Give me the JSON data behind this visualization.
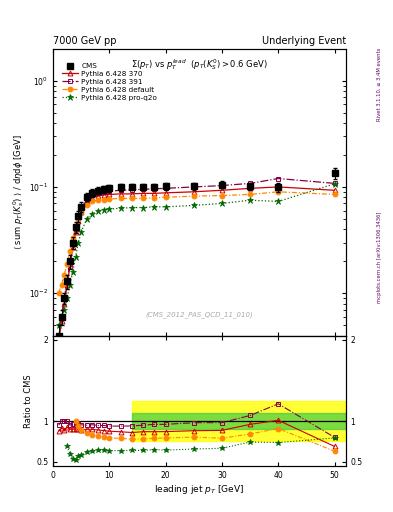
{
  "title_left": "7000 GeV pp",
  "title_right": "Underlying Event",
  "plot_title": "$\\Sigma(p_T)$ vs $p_T^{lead}$  $(p_T(K_S^0) > 0.6$ GeV$)$",
  "ylabel_main": "$\\langle$ sum $p_T(K_s^0)$ $\\rangle$ / d$\\eta$d$\\phi$ [GeV]",
  "ylabel_ratio": "Ratio to CMS",
  "xlabel": "leading jet $p_T$ [GeV]",
  "watermark": "(CMS_2012_PAS_QCD_11_010)",
  "right_label1": "mcplots.cern.ch [arXiv:1306.3436]",
  "right_label2": "Rivet 3.1.10, ≥ 3.4M events",
  "cms_x": [
    1.0,
    1.5,
    2.0,
    2.5,
    3.0,
    3.5,
    4.0,
    4.5,
    5.0,
    6.0,
    7.0,
    8.0,
    9.0,
    10.0,
    12.0,
    14.0,
    16.0,
    18.0,
    20.0,
    25.0,
    30.0,
    35.0,
    40.0,
    50.0
  ],
  "cms_y": [
    0.004,
    0.006,
    0.009,
    0.013,
    0.02,
    0.03,
    0.042,
    0.053,
    0.065,
    0.08,
    0.088,
    0.092,
    0.095,
    0.097,
    0.099,
    0.1,
    0.1,
    0.1,
    0.101,
    0.102,
    0.105,
    0.101,
    0.099,
    0.135
  ],
  "cms_yerr": [
    0.001,
    0.001,
    0.001,
    0.002,
    0.003,
    0.004,
    0.005,
    0.006,
    0.007,
    0.007,
    0.007,
    0.007,
    0.007,
    0.007,
    0.007,
    0.007,
    0.007,
    0.007,
    0.007,
    0.008,
    0.008,
    0.008,
    0.009,
    0.015
  ],
  "p370_x": [
    1.0,
    1.5,
    2.0,
    2.5,
    3.0,
    3.5,
    4.0,
    4.5,
    5.0,
    6.0,
    7.0,
    8.0,
    9.0,
    10.0,
    12.0,
    14.0,
    16.0,
    18.0,
    20.0,
    25.0,
    30.0,
    35.0,
    40.0,
    50.0
  ],
  "p370_y": [
    0.0035,
    0.0055,
    0.008,
    0.012,
    0.018,
    0.027,
    0.038,
    0.048,
    0.058,
    0.072,
    0.079,
    0.082,
    0.084,
    0.085,
    0.086,
    0.086,
    0.087,
    0.087,
    0.088,
    0.09,
    0.093,
    0.097,
    0.1,
    0.093
  ],
  "p391_x": [
    1.0,
    1.5,
    2.0,
    2.5,
    3.0,
    3.5,
    4.0,
    4.5,
    5.0,
    6.0,
    7.0,
    8.0,
    9.0,
    10.0,
    12.0,
    14.0,
    16.0,
    18.0,
    20.0,
    25.0,
    30.0,
    35.0,
    40.0,
    50.0
  ],
  "p391_y": [
    0.0038,
    0.006,
    0.009,
    0.013,
    0.019,
    0.029,
    0.04,
    0.051,
    0.062,
    0.076,
    0.084,
    0.087,
    0.09,
    0.091,
    0.093,
    0.094,
    0.095,
    0.096,
    0.097,
    0.1,
    0.103,
    0.108,
    0.12,
    0.108
  ],
  "pdef_x": [
    1.0,
    1.5,
    2.0,
    2.5,
    3.0,
    3.5,
    4.0,
    4.5,
    5.0,
    6.0,
    7.0,
    8.0,
    9.0,
    10.0,
    12.0,
    14.0,
    16.0,
    18.0,
    20.0,
    25.0,
    30.0,
    35.0,
    40.0,
    50.0
  ],
  "pdef_y": [
    0.01,
    0.012,
    0.015,
    0.019,
    0.025,
    0.033,
    0.042,
    0.05,
    0.058,
    0.068,
    0.073,
    0.075,
    0.076,
    0.077,
    0.078,
    0.078,
    0.078,
    0.079,
    0.08,
    0.082,
    0.083,
    0.085,
    0.09,
    0.085
  ],
  "pq2o_x": [
    1.0,
    1.5,
    2.0,
    2.5,
    3.0,
    3.5,
    4.0,
    4.5,
    5.0,
    6.0,
    7.0,
    8.0,
    9.0,
    10.0,
    12.0,
    14.0,
    16.0,
    18.0,
    20.0,
    25.0,
    30.0,
    35.0,
    40.0,
    50.0
  ],
  "pq2o_y": [
    0.005,
    0.006,
    0.007,
    0.009,
    0.012,
    0.016,
    0.022,
    0.03,
    0.038,
    0.05,
    0.056,
    0.059,
    0.061,
    0.062,
    0.063,
    0.064,
    0.064,
    0.065,
    0.065,
    0.067,
    0.07,
    0.075,
    0.073,
    0.107
  ],
  "ratio_370_x": [
    1.0,
    1.5,
    2.0,
    2.5,
    3.0,
    3.5,
    4.0,
    4.5,
    5.0,
    6.0,
    7.0,
    8.0,
    9.0,
    10.0,
    12.0,
    14.0,
    16.0,
    18.0,
    20.0,
    25.0,
    30.0,
    35.0,
    40.0,
    50.0
  ],
  "ratio_370_y": [
    0.875,
    0.917,
    0.889,
    0.923,
    0.9,
    0.9,
    0.905,
    0.906,
    0.892,
    0.9,
    0.898,
    0.891,
    0.884,
    0.876,
    0.869,
    0.86,
    0.87,
    0.87,
    0.871,
    0.882,
    0.886,
    0.96,
    1.01,
    0.689
  ],
  "ratio_391_x": [
    1.0,
    1.5,
    2.0,
    2.5,
    3.0,
    3.5,
    4.0,
    4.5,
    5.0,
    6.0,
    7.0,
    8.0,
    9.0,
    10.0,
    12.0,
    14.0,
    16.0,
    18.0,
    20.0,
    25.0,
    30.0,
    35.0,
    40.0,
    50.0
  ],
  "ratio_391_y": [
    0.95,
    1.0,
    1.0,
    1.0,
    0.95,
    0.967,
    0.952,
    0.962,
    0.954,
    0.95,
    0.955,
    0.946,
    0.947,
    0.938,
    0.939,
    0.94,
    0.95,
    0.96,
    0.96,
    0.98,
    0.981,
    1.069,
    1.212,
    0.8
  ],
  "ratio_def_x": [
    4.0,
    4.5,
    5.0,
    6.0,
    7.0,
    8.0,
    9.0,
    10.0,
    12.0,
    14.0,
    16.0,
    18.0,
    20.0,
    25.0,
    30.0,
    35.0,
    40.0,
    50.0
  ],
  "ratio_def_y": [
    1.0,
    0.943,
    0.892,
    0.85,
    0.83,
    0.815,
    0.8,
    0.794,
    0.788,
    0.78,
    0.78,
    0.79,
    0.792,
    0.804,
    0.79,
    0.842,
    0.909,
    0.63
  ],
  "ratio_q2o_x": [
    2.5,
    3.0,
    3.5,
    4.0,
    4.5,
    5.0,
    6.0,
    7.0,
    8.0,
    9.0,
    10.0,
    12.0,
    14.0,
    16.0,
    18.0,
    20.0,
    25.0,
    30.0,
    35.0,
    40.0,
    50.0
  ],
  "ratio_q2o_y": [
    0.692,
    0.6,
    0.533,
    0.524,
    0.566,
    0.585,
    0.625,
    0.636,
    0.641,
    0.642,
    0.639,
    0.636,
    0.64,
    0.64,
    0.65,
    0.644,
    0.657,
    0.667,
    0.743,
    0.737,
    0.793
  ],
  "color_370": "#cc0000",
  "color_391": "#880044",
  "color_def": "#ff8800",
  "color_q2o": "#006600",
  "color_cms": "#000000",
  "band_yellow_y1": 0.75,
  "band_yellow_y2": 1.25,
  "band_green_y1": 0.9,
  "band_green_y2": 1.1,
  "band_x_start": 14.0,
  "band_x_end": 52.0,
  "xlim": [
    0,
    52
  ],
  "ylim_main": [
    0.004,
    2.0
  ],
  "ylim_ratio": [
    0.45,
    2.05
  ]
}
